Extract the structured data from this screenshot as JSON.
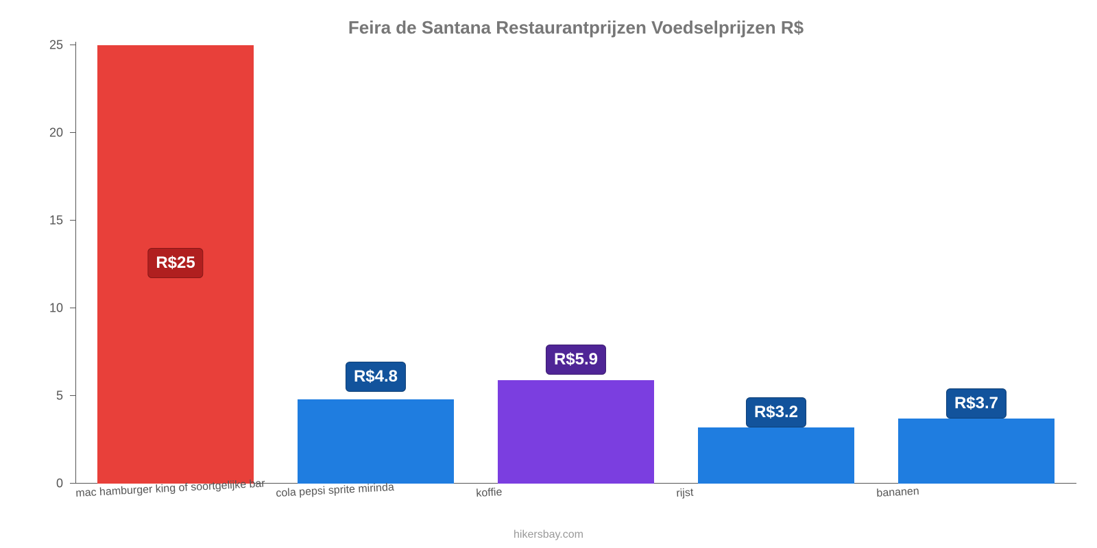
{
  "chart": {
    "type": "bar",
    "title": "Feira de Santana Restaurantprijzen Voedselprijzen R$",
    "title_color": "#777777",
    "title_fontsize": 26,
    "source": "hikersbay.com",
    "source_color": "#999999",
    "background_color": "#ffffff",
    "axis_color": "#555555",
    "label_color": "#555555",
    "label_fontsize": 16,
    "value_label_fontsize": 24,
    "ylim": [
      0,
      25
    ],
    "yticks": [
      0,
      5,
      10,
      15,
      20,
      25
    ],
    "bar_width_pct": 78,
    "categories": [
      "mac hamburger king of soortgelijke bar",
      "cola pepsi sprite mirinda",
      "koffie",
      "rijst",
      "bananen"
    ],
    "values": [
      25,
      4.8,
      5.9,
      3.2,
      3.7
    ],
    "value_labels": [
      "R$25",
      "R$4.8",
      "R$5.9",
      "R$3.2",
      "R$3.7"
    ],
    "bar_colors": [
      "#e8403a",
      "#1f7de0",
      "#7b3ee0",
      "#1f7de0",
      "#1f7de0"
    ],
    "badge_colors": [
      "#b01f1f",
      "#12539c",
      "#4f2596",
      "#12539c",
      "#12539c"
    ],
    "badge_offsets_pct": [
      50,
      24,
      28,
      16,
      18
    ]
  }
}
